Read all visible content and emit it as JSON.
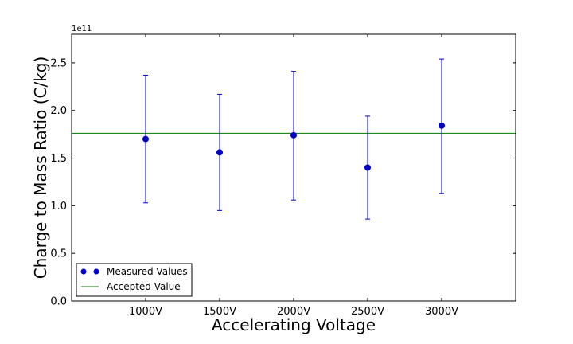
{
  "chart_data": {
    "type": "scatter",
    "title": "",
    "xlabel": "Accelerating Voltage",
    "ylabel": "Charge to Mass Ratio (C/kg)",
    "y_exponent_label": "1e11",
    "categories": [
      "1000V",
      "1500V",
      "2000V",
      "2500V",
      "3000V"
    ],
    "x": [
      1000,
      1500,
      2000,
      2500,
      3000
    ],
    "xlim": [
      500,
      3500
    ],
    "ylim": [
      0.0,
      2.8
    ],
    "y_ticks": [
      0.0,
      0.5,
      1.0,
      1.5,
      2.0,
      2.5
    ],
    "y_tick_labels": [
      "0.0",
      "0.5",
      "1.0",
      "1.5",
      "2.0",
      "2.5"
    ],
    "grid": false,
    "legend_position": "bottom-left",
    "series": [
      {
        "name": "Measured Values",
        "kind": "points-with-errorbars",
        "color": "#0000cc",
        "values": [
          1.7,
          1.56,
          1.74,
          1.4,
          1.84
        ],
        "err_low": [
          1.03,
          0.95,
          1.06,
          0.86,
          1.13
        ],
        "err_high": [
          2.37,
          2.17,
          2.41,
          1.94,
          2.54
        ]
      },
      {
        "name": "Accepted Value",
        "kind": "horizontal-line",
        "color": "#007700",
        "value": 1.76
      }
    ]
  }
}
